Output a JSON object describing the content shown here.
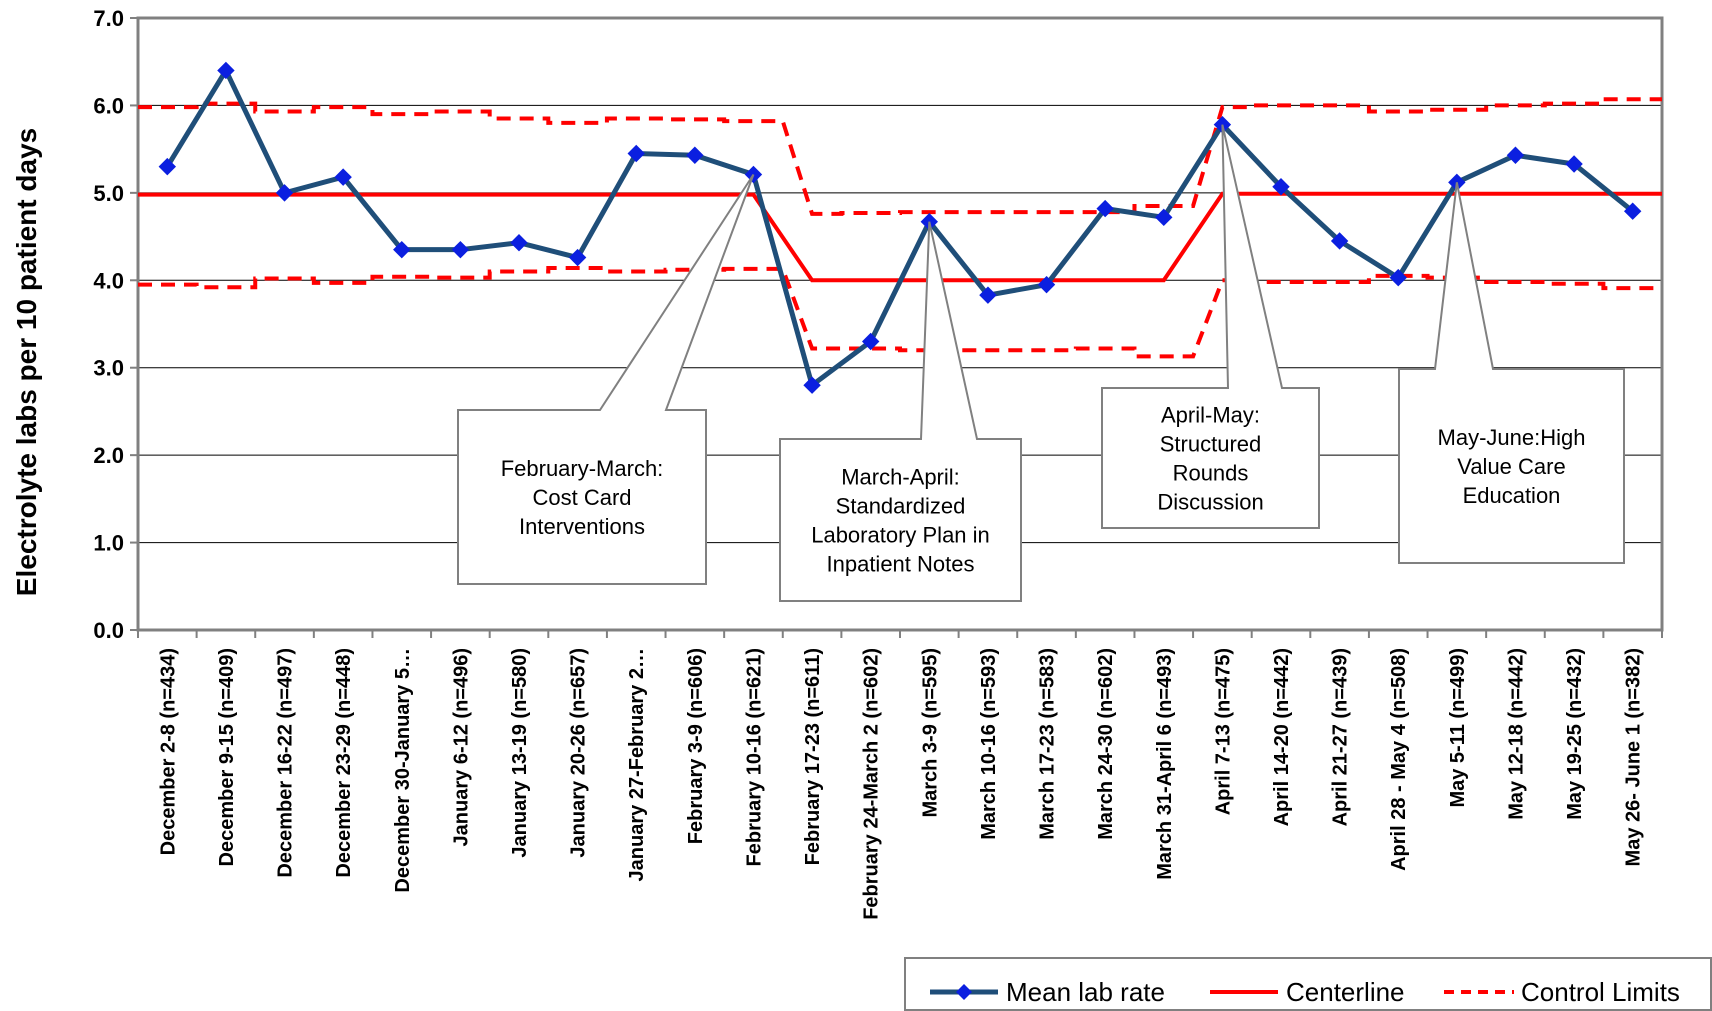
{
  "chart_data": {
    "type": "line",
    "ylabel": "Electrolyte labs per 10 patient days",
    "ylim": [
      0,
      7
    ],
    "yticks": [
      "0.0",
      "1.0",
      "2.0",
      "3.0",
      "4.0",
      "5.0",
      "6.0",
      "7.0"
    ],
    "grid": true,
    "legend_position": "bottom-right",
    "categories": [
      "December 2-8 (n=434)",
      "December 9-15 (n=409)",
      "December 16-22 (n=497)",
      "December 23-29 (n=448)",
      "December 30-January 5…",
      "January 6-12 (n=496)",
      "January 13-19 (n=580)",
      "January 20-26 (n=657)",
      "January 27-February 2…",
      "February 3-9 (n=606)",
      "February 10-16 (n=621)",
      "February 17-23 (n=611)",
      "February 24-March 2 (n=602)",
      "March 3-9 (n=595)",
      "March 10-16 (n=593)",
      "March 17-23 (n=583)",
      "March 24-30 (n=602)",
      "March 31-April 6 (n=493)",
      "April 7-13 (n=475)",
      "April 14-20 (n=442)",
      "April 21-27 (n=439)",
      "April 28 - May 4 (n=508)",
      "May 5-11 (n=499)",
      "May 12-18 (n=442)",
      "May 19-25 (n=432)",
      "May 26- June 1 (n=382)"
    ],
    "series": [
      {
        "name": "Mean lab rate",
        "color": "#1F4E79",
        "marker": "diamond",
        "values": [
          5.3,
          6.4,
          5.0,
          5.18,
          4.35,
          4.35,
          4.43,
          4.26,
          5.45,
          5.43,
          5.21,
          2.8,
          3.3,
          4.67,
          3.83,
          3.95,
          4.82,
          4.72,
          5.78,
          5.07,
          4.45,
          4.03,
          5.12,
          5.43,
          5.33,
          4.79
        ]
      },
      {
        "name": "Centerline",
        "color": "#FF0000",
        "style": "solid",
        "values": [
          4.98,
          4.98,
          4.98,
          4.98,
          4.98,
          4.98,
          4.98,
          4.98,
          4.98,
          4.98,
          4.98,
          4.0,
          4.0,
          4.0,
          4.0,
          4.0,
          4.0,
          4.0,
          4.99,
          4.99,
          4.99,
          4.99,
          4.99,
          4.99,
          4.99,
          4.99
        ]
      },
      {
        "name": "Control Limits",
        "color": "#FF0000",
        "style": "dashed",
        "step": true,
        "upper": [
          5.98,
          6.02,
          5.93,
          5.98,
          5.9,
          5.93,
          5.85,
          5.8,
          5.85,
          5.84,
          5.82,
          4.76,
          4.77,
          4.78,
          4.78,
          4.78,
          4.78,
          4.85,
          5.98,
          6.0,
          6.0,
          5.93,
          5.95,
          6.0,
          6.02,
          6.07
        ],
        "lower": [
          3.95,
          3.92,
          4.02,
          3.97,
          4.04,
          4.03,
          4.1,
          4.14,
          4.1,
          4.12,
          4.13,
          3.22,
          3.22,
          3.2,
          3.2,
          3.2,
          3.22,
          3.13,
          4.0,
          3.98,
          3.98,
          4.05,
          4.03,
          3.98,
          3.96,
          3.91
        ]
      }
    ],
    "annotations": [
      {
        "lines": [
          "February-March:",
          "Cost Card",
          "Interventions"
        ],
        "points_to": "February 10-16 (n=621)"
      },
      {
        "lines": [
          "March-April:",
          "Standardized",
          "Laboratory Plan in",
          "Inpatient Notes"
        ],
        "points_to": "March 3-9 (n=595)"
      },
      {
        "lines": [
          "April-May:",
          "Structured",
          "Rounds",
          "Discussion"
        ],
        "points_to": "April 7-13 (n=475)"
      },
      {
        "lines": [
          "May-June:High",
          "Value Care",
          "Education"
        ],
        "points_to": "May 5-11 (n=499)"
      }
    ]
  }
}
